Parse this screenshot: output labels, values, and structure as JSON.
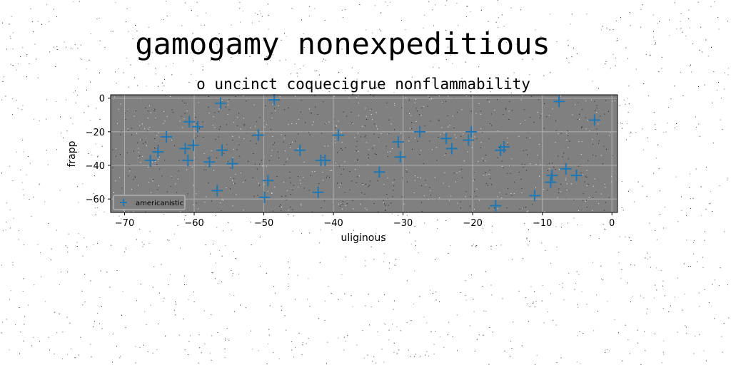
{
  "figure": {
    "title": "gamogamy nonexpeditious"
  },
  "chart_data": {
    "type": "scatter",
    "title": "o uncinct coquecigrue nonflammability",
    "xlabel": "uliginous",
    "ylabel": "frapp",
    "xlim": [
      -72,
      0.8
    ],
    "ylim": [
      -68,
      2
    ],
    "xticks": [
      -70,
      -60,
      -50,
      -40,
      -30,
      -20,
      -10,
      0
    ],
    "yticks": [
      0,
      -20,
      -40,
      -60
    ],
    "grid": true,
    "legend_position": "lower-left",
    "colors": {
      "plot_bg": "#808080",
      "marker": "#1f77b4",
      "grid": "#b0b0b0"
    },
    "series": [
      {
        "name": "americanistic",
        "marker": "plus",
        "x": [
          -66.3,
          -65.2,
          -64.0,
          -61.3,
          -60.9,
          -60.7,
          -60.1,
          -59.5,
          -57.8,
          -56.7,
          -56.2,
          -56.0,
          -54.5,
          -50.8,
          -49.9,
          -49.4,
          -48.5,
          -44.8,
          -42.2,
          -41.8,
          -41.2,
          -39.3,
          -33.4,
          -30.7,
          -30.4,
          -27.6,
          -23.8,
          -23.0,
          -20.6,
          -20.2,
          -16.7,
          -16.0,
          -15.5,
          -11.1,
          -8.8,
          -8.6,
          -7.6,
          -6.6,
          -5.1,
          -2.5
        ],
        "y": [
          -37,
          -32,
          -23,
          -30,
          -37,
          -14,
          -28,
          -17,
          -38,
          -55,
          -3,
          -31,
          -39,
          -22,
          -59,
          -49,
          -1,
          -31,
          -56,
          -37,
          -37,
          -22,
          -44,
          -26,
          -35,
          -20,
          -24,
          -30,
          -25,
          -20,
          -64,
          -31,
          -29,
          -58,
          -50,
          -46,
          -2,
          -42,
          -46,
          -13
        ]
      }
    ]
  }
}
